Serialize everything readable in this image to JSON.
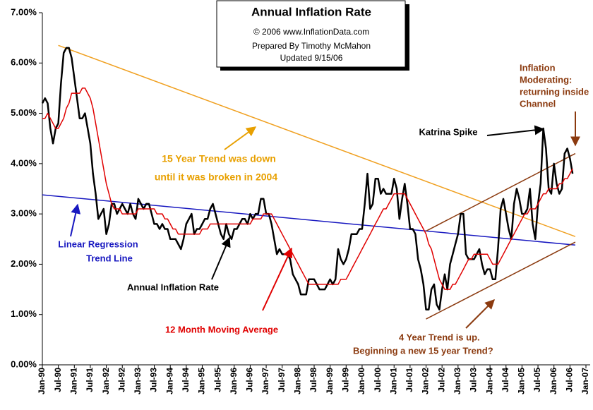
{
  "chart_data": {
    "type": "line",
    "title": "Annual  Inflation Rate",
    "subtitle": [
      "© 2006 www.InflationData.com",
      "Prepared By Timothy McMahon",
      "Updated 9/15/06"
    ],
    "x": [
      "1990-01",
      "1990-02",
      "1990-03",
      "1990-04",
      "1990-05",
      "1990-06",
      "1990-07",
      "1990-08",
      "1990-09",
      "1990-10",
      "1990-11",
      "1990-12",
      "1991-01",
      "1991-02",
      "1991-03",
      "1991-04",
      "1991-05",
      "1991-06",
      "1991-07",
      "1991-08",
      "1991-09",
      "1991-10",
      "1991-11",
      "1991-12",
      "1992-01",
      "1992-02",
      "1992-03",
      "1992-04",
      "1992-05",
      "1992-06",
      "1992-07",
      "1992-08",
      "1992-09",
      "1992-10",
      "1992-11",
      "1992-12",
      "1993-01",
      "1993-02",
      "1993-03",
      "1993-04",
      "1993-05",
      "1993-06",
      "1993-07",
      "1993-08",
      "1993-09",
      "1993-10",
      "1993-11",
      "1993-12",
      "1994-01",
      "1994-02",
      "1994-03",
      "1994-04",
      "1994-05",
      "1994-06",
      "1994-07",
      "1994-08",
      "1994-09",
      "1994-10",
      "1994-11",
      "1994-12",
      "1995-01",
      "1995-02",
      "1995-03",
      "1995-04",
      "1995-05",
      "1995-06",
      "1995-07",
      "1995-08",
      "1995-09",
      "1995-10",
      "1995-11",
      "1995-12",
      "1996-01",
      "1996-02",
      "1996-03",
      "1996-04",
      "1996-05",
      "1996-06",
      "1996-07",
      "1996-08",
      "1996-09",
      "1996-10",
      "1996-11",
      "1996-12",
      "1997-01",
      "1997-02",
      "1997-03",
      "1997-04",
      "1997-05",
      "1997-06",
      "1997-07",
      "1997-08",
      "1997-09",
      "1997-10",
      "1997-11",
      "1997-12",
      "1998-01",
      "1998-02",
      "1998-03",
      "1998-04",
      "1998-05",
      "1998-06",
      "1998-07",
      "1998-08",
      "1998-09",
      "1998-10",
      "1998-11",
      "1998-12",
      "1999-01",
      "1999-02",
      "1999-03",
      "1999-04",
      "1999-05",
      "1999-06",
      "1999-07",
      "1999-08",
      "1999-09",
      "1999-10",
      "1999-11",
      "1999-12",
      "2000-01",
      "2000-02",
      "2000-03",
      "2000-04",
      "2000-05",
      "2000-06",
      "2000-07",
      "2000-08",
      "2000-09",
      "2000-10",
      "2000-11",
      "2000-12",
      "2001-01",
      "2001-02",
      "2001-03",
      "2001-04",
      "2001-05",
      "2001-06",
      "2001-07",
      "2001-08",
      "2001-09",
      "2001-10",
      "2001-11",
      "2001-12",
      "2002-01",
      "2002-02",
      "2002-03",
      "2002-04",
      "2002-05",
      "2002-06",
      "2002-07",
      "2002-08",
      "2002-09",
      "2002-10",
      "2002-11",
      "2002-12",
      "2003-01",
      "2003-02",
      "2003-03",
      "2003-04",
      "2003-05",
      "2003-06",
      "2003-07",
      "2003-08",
      "2003-09",
      "2003-10",
      "2003-11",
      "2003-12",
      "2004-01",
      "2004-02",
      "2004-03",
      "2004-04",
      "2004-05",
      "2004-06",
      "2004-07",
      "2004-08",
      "2004-09",
      "2004-10",
      "2004-11",
      "2004-12",
      "2005-01",
      "2005-02",
      "2005-03",
      "2005-04",
      "2005-05",
      "2005-06",
      "2005-07",
      "2005-08",
      "2005-09",
      "2005-10",
      "2005-11",
      "2005-12",
      "2006-01",
      "2006-02",
      "2006-03",
      "2006-04",
      "2006-05",
      "2006-06",
      "2006-07",
      "2006-08"
    ],
    "series": [
      {
        "color": "#000000",
        "values": [
          5.2,
          5.3,
          5.2,
          4.7,
          4.4,
          4.7,
          4.8,
          5.6,
          6.2,
          6.3,
          6.3,
          6.1,
          5.7,
          5.3,
          4.9,
          4.9,
          5.0,
          4.7,
          4.4,
          3.8,
          3.4,
          2.9,
          3.0,
          3.1,
          2.6,
          2.8,
          3.2,
          3.2,
          3.0,
          3.1,
          3.2,
          3.1,
          3.0,
          3.2,
          3.0,
          2.9,
          3.3,
          3.2,
          3.1,
          3.2,
          3.2,
          3.0,
          2.8,
          2.8,
          2.7,
          2.8,
          2.7,
          2.7,
          2.5,
          2.5,
          2.5,
          2.4,
          2.3,
          2.5,
          2.8,
          2.9,
          3.0,
          2.6,
          2.7,
          2.7,
          2.8,
          2.9,
          2.9,
          3.1,
          3.2,
          3.0,
          2.8,
          2.6,
          2.5,
          2.8,
          2.6,
          2.5,
          2.7,
          2.7,
          2.8,
          2.9,
          2.9,
          2.8,
          3.0,
          2.9,
          3.0,
          3.0,
          3.3,
          3.3,
          3.0,
          3.0,
          2.8,
          2.5,
          2.2,
          2.3,
          2.2,
          2.2,
          2.2,
          2.1,
          1.8,
          1.7,
          1.6,
          1.4,
          1.4,
          1.4,
          1.7,
          1.7,
          1.7,
          1.6,
          1.5,
          1.5,
          1.5,
          1.6,
          1.7,
          1.6,
          1.7,
          2.3,
          2.1,
          2.0,
          2.1,
          2.3,
          2.6,
          2.6,
          2.6,
          2.7,
          2.7,
          3.2,
          3.8,
          3.1,
          3.2,
          3.7,
          3.7,
          3.4,
          3.5,
          3.4,
          3.4,
          3.4,
          3.7,
          3.5,
          2.9,
          3.3,
          3.6,
          3.2,
          2.7,
          2.7,
          2.6,
          2.1,
          1.9,
          1.6,
          1.1,
          1.1,
          1.5,
          1.6,
          1.2,
          1.1,
          1.5,
          1.8,
          1.5,
          2.0,
          2.2,
          2.4,
          2.6,
          3.0,
          3.0,
          2.2,
          2.1,
          2.1,
          2.1,
          2.2,
          2.3,
          2.0,
          1.8,
          1.9,
          1.9,
          1.7,
          1.7,
          2.3,
          3.1,
          3.3,
          3.0,
          2.7,
          2.5,
          3.2,
          3.5,
          3.3,
          3.0,
          3.0,
          3.1,
          3.5,
          2.8,
          2.5,
          3.2,
          3.6,
          4.7,
          4.3,
          3.5,
          3.4,
          4.0,
          3.6,
          3.4,
          3.5,
          4.2,
          4.3,
          4.1,
          3.8
        ]
      },
      {
        "color": "#e00000",
        "values": [
          4.9,
          4.9,
          5.0,
          4.9,
          4.8,
          4.7,
          4.7,
          4.8,
          4.9,
          5.1,
          5.2,
          5.4,
          5.4,
          5.4,
          5.4,
          5.5,
          5.5,
          5.4,
          5.3,
          5.1,
          4.8,
          4.5,
          4.2,
          3.9,
          3.6,
          3.4,
          3.2,
          3.1,
          3.1,
          3.1,
          3.0,
          3.0,
          3.0,
          3.0,
          3.0,
          3.0,
          3.1,
          3.1,
          3.1,
          3.1,
          3.1,
          3.1,
          3.1,
          3.0,
          3.0,
          3.0,
          2.9,
          2.9,
          2.8,
          2.7,
          2.7,
          2.6,
          2.6,
          2.6,
          2.6,
          2.6,
          2.6,
          2.6,
          2.6,
          2.6,
          2.7,
          2.7,
          2.7,
          2.8,
          2.8,
          2.8,
          2.8,
          2.8,
          2.8,
          2.8,
          2.8,
          2.8,
          2.8,
          2.8,
          2.8,
          2.8,
          2.8,
          2.8,
          2.8,
          2.9,
          2.9,
          2.9,
          2.9,
          3.0,
          3.0,
          3.0,
          3.0,
          2.9,
          2.8,
          2.7,
          2.6,
          2.5,
          2.4,
          2.3,
          2.2,
          2.1,
          2.0,
          1.9,
          1.8,
          1.7,
          1.6,
          1.6,
          1.6,
          1.6,
          1.6,
          1.6,
          1.6,
          1.6,
          1.6,
          1.6,
          1.6,
          1.6,
          1.7,
          1.7,
          1.7,
          1.8,
          1.9,
          2.0,
          2.1,
          2.2,
          2.3,
          2.4,
          2.5,
          2.6,
          2.7,
          2.8,
          2.9,
          3.0,
          3.1,
          3.1,
          3.2,
          3.3,
          3.4,
          3.4,
          3.4,
          3.4,
          3.4,
          3.3,
          3.2,
          3.1,
          3.0,
          2.9,
          2.8,
          2.7,
          2.6,
          2.4,
          2.3,
          2.1,
          1.9,
          1.7,
          1.6,
          1.5,
          1.5,
          1.5,
          1.6,
          1.6,
          1.7,
          1.8,
          1.9,
          2.0,
          2.1,
          2.1,
          2.2,
          2.2,
          2.2,
          2.2,
          2.2,
          2.2,
          2.1,
          2.0,
          2.0,
          2.0,
          2.1,
          2.2,
          2.3,
          2.4,
          2.5,
          2.6,
          2.7,
          2.8,
          2.9,
          3.0,
          3.0,
          3.1,
          3.1,
          3.1,
          3.2,
          3.3,
          3.4,
          3.4,
          3.5,
          3.5,
          3.5,
          3.5,
          3.6,
          3.6,
          3.7,
          3.7,
          3.8,
          3.9
        ]
      }
    ],
    "trend_lines": [
      {
        "color": "#f0a020",
        "x": [
          "1990-07",
          "2006-09"
        ],
        "values": [
          6.35,
          2.55
        ]
      },
      {
        "color": "#1818c0",
        "x": [
          "1990-01",
          "2006-09"
        ],
        "values": [
          3.38,
          2.38
        ]
      },
      {
        "color": "#8b3a0f",
        "x": [
          "2002-01",
          "2006-09"
        ],
        "values": [
          2.66,
          4.2
        ]
      },
      {
        "color": "#8b3a0f",
        "x": [
          "2002-01",
          "2006-09"
        ],
        "values": [
          0.91,
          2.44
        ]
      }
    ],
    "annotations": [
      {
        "lines": [
          "Katrina Spike"
        ],
        "color": "#000000"
      },
      {
        "lines": [
          "Inflation",
          "Moderating:",
          "returning inside",
          "Channel"
        ],
        "color": "#8b3a0f"
      },
      {
        "lines": [
          "15 Year Trend was down",
          "until it was broken in 2004"
        ],
        "color": "#e8a000"
      },
      {
        "lines": [
          "Linear Regression",
          "Trend Line"
        ],
        "color": "#1818c0"
      },
      {
        "lines": [
          "Annual Inflation Rate"
        ],
        "color": "#000000"
      },
      {
        "lines": [
          "12 Month Moving Average"
        ],
        "color": "#e00000"
      },
      {
        "lines": [
          "4 Year Trend is up.",
          "Beginning a new 15 year Trend?"
        ],
        "color": "#8b3a0f"
      }
    ],
    "xlim": [
      "1990-01",
      "2007-01"
    ],
    "xticks": [
      {
        "value": "1990-01",
        "label": "Jan-90"
      },
      {
        "value": "1990-07",
        "label": "Jul-90"
      },
      {
        "value": "1991-01",
        "label": "Jan-91"
      },
      {
        "value": "1991-07",
        "label": "Jul-91"
      },
      {
        "value": "1992-01",
        "label": "Jan-92"
      },
      {
        "value": "1992-07",
        "label": "Jul-92"
      },
      {
        "value": "1993-01",
        "label": "Jan-93"
      },
      {
        "value": "1993-07",
        "label": "Jul-93"
      },
      {
        "value": "1994-01",
        "label": "Jan-94"
      },
      {
        "value": "1994-07",
        "label": "Jul-94"
      },
      {
        "value": "1995-01",
        "label": "Jan-95"
      },
      {
        "value": "1995-07",
        "label": "Jul-95"
      },
      {
        "value": "1996-01",
        "label": "Jan-96"
      },
      {
        "value": "1996-07",
        "label": "Jul-96"
      },
      {
        "value": "1997-01",
        "label": "Jan-97"
      },
      {
        "value": "1997-07",
        "label": "Jul-97"
      },
      {
        "value": "1998-01",
        "label": "Jan-98"
      },
      {
        "value": "1998-07",
        "label": "Jul-98"
      },
      {
        "value": "1999-01",
        "label": "Jan-99"
      },
      {
        "value": "1999-07",
        "label": "Jul-99"
      },
      {
        "value": "2000-01",
        "label": "Jan-00"
      },
      {
        "value": "2000-07",
        "label": "Jul-00"
      },
      {
        "value": "2001-01",
        "label": "Jan-01"
      },
      {
        "value": "2001-07",
        "label": "Jul-01"
      },
      {
        "value": "2002-01",
        "label": "Jan-02"
      },
      {
        "value": "2002-07",
        "label": "Jul-02"
      },
      {
        "value": "2003-01",
        "label": "Jan-03"
      },
      {
        "value": "2003-07",
        "label": "Jul-03"
      },
      {
        "value": "2004-01",
        "label": "Jan-04"
      },
      {
        "value": "2004-07",
        "label": "Jul-04"
      },
      {
        "value": "2005-01",
        "label": "Jan-05"
      },
      {
        "value": "2005-07",
        "label": "Jul-05"
      },
      {
        "value": "2006-01",
        "label": "Jan-06"
      },
      {
        "value": "2006-07",
        "label": "Jul-06"
      },
      {
        "value": "2007-01",
        "label": "Jan-07"
      }
    ],
    "ylim": [
      0,
      7
    ],
    "yticks": [
      {
        "value": 0,
        "label": "0.00%"
      },
      {
        "value": 1,
        "label": "1.00%"
      },
      {
        "value": 2,
        "label": "2.00%"
      },
      {
        "value": 3,
        "label": "3.00%"
      },
      {
        "value": 4,
        "label": "4.00%"
      },
      {
        "value": 5,
        "label": "5.00%"
      },
      {
        "value": 6,
        "label": "6.00%"
      },
      {
        "value": 7,
        "label": "7.00%"
      }
    ],
    "grid": false
  }
}
